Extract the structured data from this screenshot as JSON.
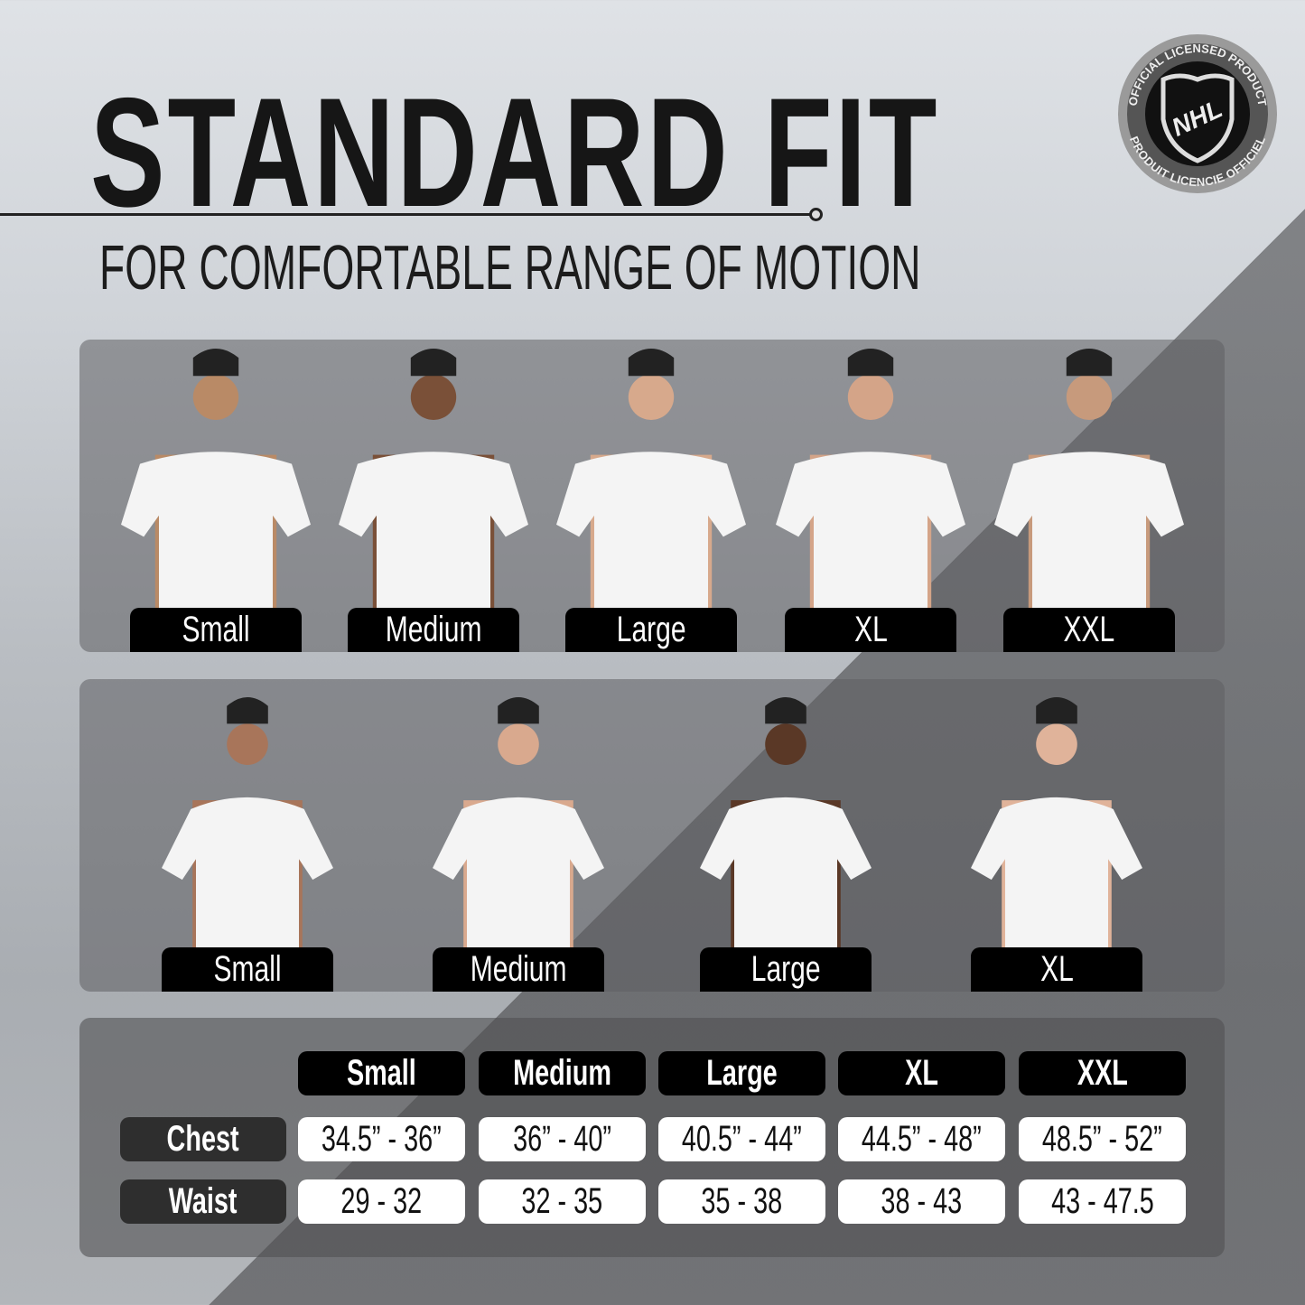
{
  "header": {
    "title": "STANDARD FIT",
    "subtitle": "FOR COMFORTABLE RANGE OF MOTION"
  },
  "logo": {
    "text_top": "OFFICIAL LICENSED PRODUCT",
    "text_bottom": "PRODUIT LICENCIE OFFICIEL",
    "shield_text": "NHL"
  },
  "men": {
    "sizes": [
      "Small",
      "Medium",
      "Large",
      "XL",
      "XXL"
    ]
  },
  "women": {
    "sizes": [
      "Small",
      "Medium",
      "Large",
      "XL"
    ]
  },
  "size_table": {
    "columns": [
      "Small",
      "Medium",
      "Large",
      "XL",
      "XXL"
    ],
    "rows": [
      {
        "label": "Chest",
        "values": [
          "34.5” - 36”",
          "36” - 40”",
          "40.5” - 44”",
          "44.5” - 48”",
          "48.5” - 52”"
        ]
      },
      {
        "label": "Waist",
        "values": [
          "29 - 32",
          "32 - 35",
          "35 - 38",
          "38 - 43",
          "43 - 47.5"
        ]
      }
    ]
  }
}
